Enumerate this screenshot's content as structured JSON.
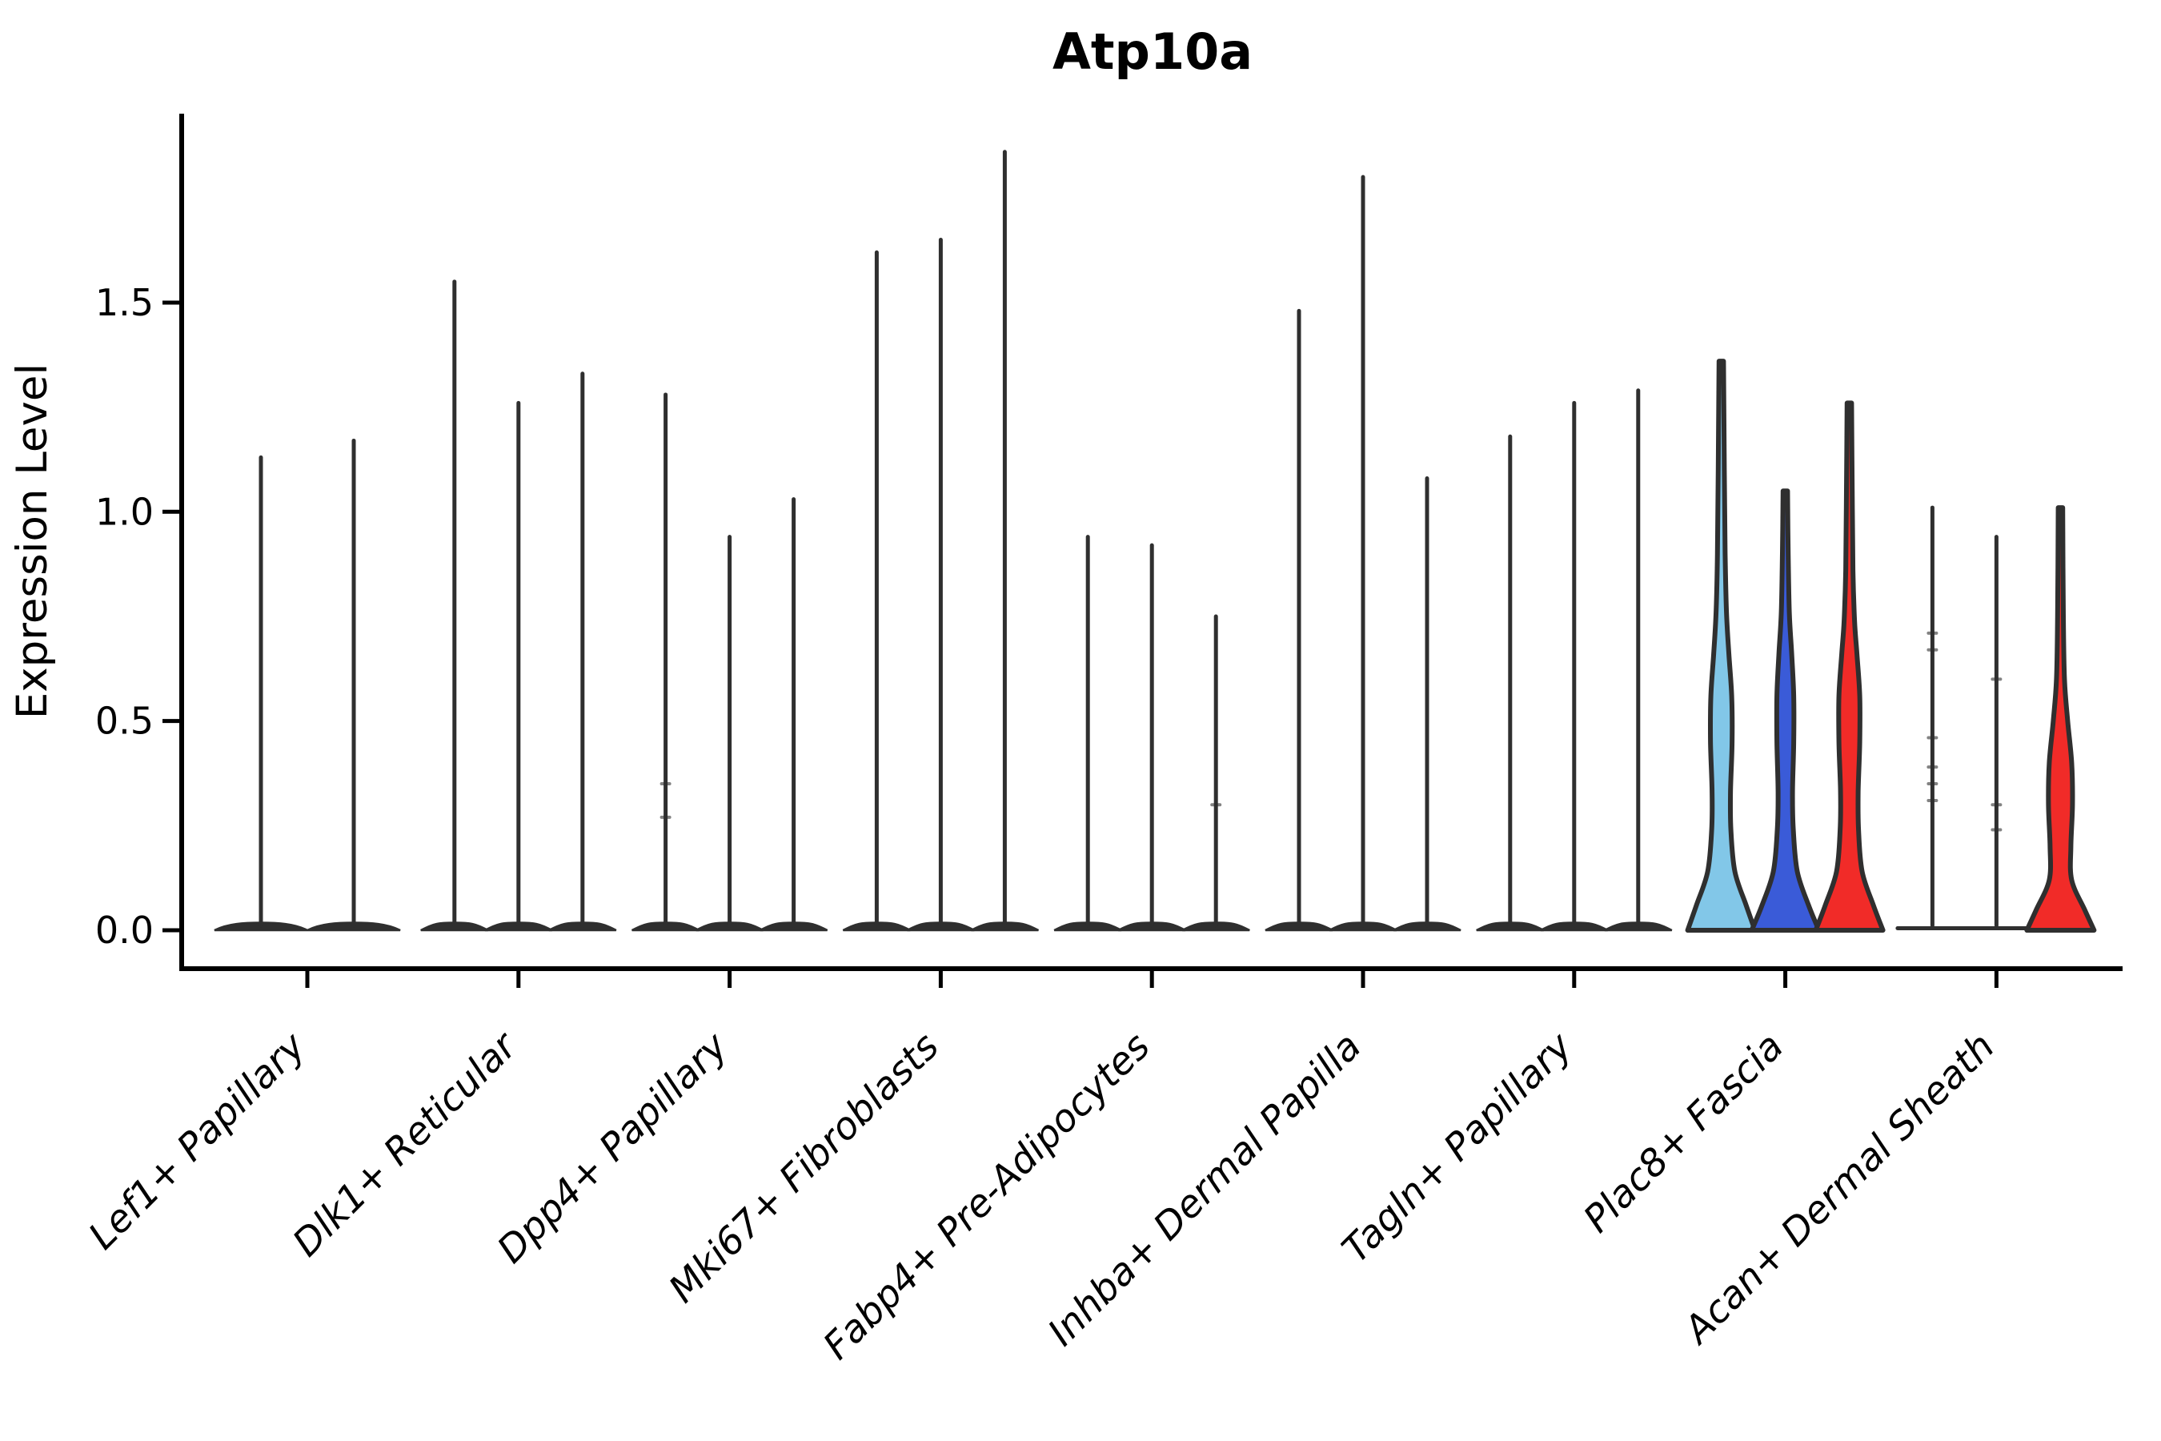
{
  "colors": {
    "background": "#ffffff",
    "axis": "#000000",
    "violin_ink": "#2f2f2f",
    "lightblue": "#82C7E8",
    "blue": "#3A5BD8",
    "red": "#F12B28"
  },
  "chart_data": {
    "type": "violin",
    "title": "Atp10a",
    "xlabel": "",
    "ylabel": "Expression Level",
    "yticks": [
      0.0,
      0.5,
      1.0,
      1.5
    ],
    "ytick_labels": [
      "0.0",
      "0.5",
      "1.0",
      "1.5"
    ],
    "ylim": [
      -0.09,
      1.95
    ],
    "grid": false,
    "legend": "none",
    "categories": [
      "Lef1+ Papillary",
      "Dlk1+ Reticular",
      "Dpp4+ Papillary",
      "Mki67+ Fibroblasts",
      "Fabp4+ Pre-Adipocytes",
      "Inhba+ Dermal Papilla",
      "Tagln+ Papillary",
      "Plac8+ Fascia",
      "Acan+ Dermal Sheath"
    ],
    "groups": [
      {
        "label": "Lef1+ Papillary",
        "violins": [
          {
            "max": 1.13,
            "style": "spike"
          },
          {
            "max": 1.17,
            "style": "spike"
          }
        ]
      },
      {
        "label": "Dlk1+ Reticular",
        "violins": [
          {
            "max": 1.55,
            "style": "spike"
          },
          {
            "max": 1.26,
            "style": "spike"
          },
          {
            "max": 1.33,
            "style": "spike"
          }
        ]
      },
      {
        "label": "Dpp4+ Papillary",
        "violins": [
          {
            "max": 1.28,
            "style": "spike",
            "marks": [
              0.27,
              0.35
            ]
          },
          {
            "max": 0.94,
            "style": "spike"
          },
          {
            "max": 1.03,
            "style": "spike"
          }
        ]
      },
      {
        "label": "Mki67+ Fibroblasts",
        "violins": [
          {
            "max": 1.62,
            "style": "spike"
          },
          {
            "max": 1.65,
            "style": "spike"
          },
          {
            "max": 1.86,
            "style": "spike"
          }
        ]
      },
      {
        "label": "Fabp4+ Pre-Adipocytes",
        "violins": [
          {
            "max": 0.94,
            "style": "spike"
          },
          {
            "max": 0.92,
            "style": "spike"
          },
          {
            "max": 0.75,
            "style": "spike",
            "marks": [
              0.3
            ]
          }
        ]
      },
      {
        "label": "Inhba+ Dermal Papilla",
        "violins": [
          {
            "max": 1.48,
            "style": "spike"
          },
          {
            "max": 1.8,
            "style": "spike"
          },
          {
            "max": 1.08,
            "style": "spike"
          }
        ]
      },
      {
        "label": "Tagln+ Papillary",
        "violins": [
          {
            "max": 1.18,
            "style": "spike"
          },
          {
            "max": 1.26,
            "style": "spike"
          },
          {
            "max": 1.29,
            "style": "spike"
          }
        ]
      },
      {
        "label": "Plac8+ Fascia",
        "violins": [
          {
            "max": 1.36,
            "style": "body",
            "color_key": "lightblue",
            "profile": [
              [
                0,
                42
              ],
              [
                0.06,
                31
              ],
              [
                0.14,
                17
              ],
              [
                0.24,
                12
              ],
              [
                0.33,
                11.5
              ],
              [
                0.45,
                13.5
              ],
              [
                0.56,
                13
              ],
              [
                0.66,
                9.5
              ],
              [
                0.76,
                6.5
              ],
              [
                0.9,
                4.8
              ],
              [
                1.1,
                3.8
              ],
              [
                1.36,
                2.8
              ]
            ]
          },
          {
            "max": 1.05,
            "style": "body",
            "color_key": "blue",
            "profile": [
              [
                0,
                42
              ],
              [
                0.06,
                29
              ],
              [
                0.14,
                15
              ],
              [
                0.24,
                10
              ],
              [
                0.33,
                9
              ],
              [
                0.45,
                10.5
              ],
              [
                0.56,
                10.5
              ],
              [
                0.66,
                8
              ],
              [
                0.76,
                5
              ],
              [
                0.9,
                3.6
              ],
              [
                1.05,
                2.8
              ]
            ]
          },
          {
            "max": 1.26,
            "style": "body",
            "color_key": "red",
            "profile": [
              [
                0,
                42
              ],
              [
                0.06,
                30
              ],
              [
                0.14,
                16
              ],
              [
                0.24,
                11.5
              ],
              [
                0.33,
                11
              ],
              [
                0.45,
                13
              ],
              [
                0.56,
                13
              ],
              [
                0.66,
                9.5
              ],
              [
                0.74,
                6.5
              ],
              [
                0.86,
                4.5
              ],
              [
                1.05,
                3.6
              ],
              [
                1.26,
                2.8
              ]
            ]
          }
        ]
      },
      {
        "label": "Acan+ Dermal Sheath",
        "violins": [
          {
            "max": 1.01,
            "style": "spike",
            "flat_base": true,
            "marks": [
              0.31,
              0.35,
              0.39,
              0.46,
              0.67,
              0.71
            ]
          },
          {
            "max": 0.94,
            "style": "spike",
            "flat_base": true,
            "marks": [
              0.24,
              0.3,
              0.6
            ]
          },
          {
            "max": 1.01,
            "style": "body",
            "color_key": "red",
            "profile": [
              [
                0,
                42
              ],
              [
                0.05,
                30
              ],
              [
                0.12,
                14
              ],
              [
                0.2,
                13
              ],
              [
                0.3,
                15
              ],
              [
                0.4,
                14
              ],
              [
                0.5,
                9
              ],
              [
                0.6,
                5
              ],
              [
                0.75,
                3.6
              ],
              [
                1.01,
                2.8
              ]
            ]
          }
        ]
      }
    ]
  }
}
